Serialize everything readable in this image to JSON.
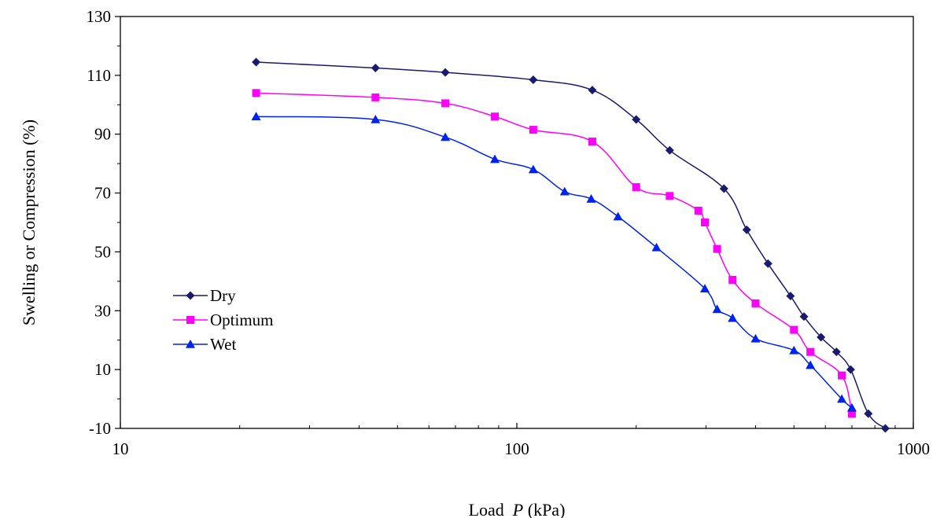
{
  "chart_data": {
    "type": "line",
    "title": "",
    "xlabel": "Load  P (kPa)",
    "xlabel_parts": [
      "Load  ",
      "P",
      " (kPa)"
    ],
    "ylabel": "Swelling or Compression (%)",
    "xscale": "log",
    "xlim": [
      10,
      1000
    ],
    "ylim": [
      -10,
      130
    ],
    "x_ticks": [
      10,
      100,
      1000
    ],
    "x_tick_labels": [
      "10",
      "100",
      "1000"
    ],
    "y_ticks": [
      -10,
      10,
      30,
      50,
      70,
      90,
      110,
      130
    ],
    "y_tick_labels": [
      "-10",
      "10",
      "30",
      "50",
      "70",
      "90",
      "110",
      "130"
    ],
    "grid": false,
    "legend_position": "left-middle",
    "series": [
      {
        "name": "Dry",
        "color": "#1a1a6e",
        "marker": "diamond",
        "x": [
          22,
          44,
          66,
          110,
          155,
          200,
          243,
          333,
          380,
          430,
          490,
          530,
          585,
          640,
          695,
          770,
          850
        ],
        "y": [
          114.5,
          112.5,
          111,
          108.5,
          105,
          95,
          84.5,
          71.5,
          57.5,
          46,
          35,
          28,
          21,
          16,
          10,
          -5,
          -10
        ]
      },
      {
        "name": "Optimum",
        "color": "#ff00ff",
        "marker": "square",
        "x": [
          22,
          44,
          66,
          88,
          110,
          155,
          200,
          243,
          287,
          298,
          320,
          350,
          400,
          500,
          550,
          660,
          700
        ],
        "y": [
          104,
          102.5,
          100.5,
          96,
          91.5,
          87.5,
          72,
          69,
          64,
          60,
          51,
          40.5,
          32.5,
          23.5,
          16,
          8,
          -5
        ]
      },
      {
        "name": "Wet",
        "color": "#0022ee",
        "marker": "triangle",
        "x": [
          22,
          44,
          66,
          88,
          110,
          132,
          154,
          180,
          225,
          298,
          320,
          350,
          400,
          500,
          550,
          660,
          700
        ],
        "y": [
          96,
          95,
          89,
          81.5,
          78,
          70.5,
          68,
          62,
          51.5,
          37.5,
          30.5,
          27.5,
          20.5,
          16.5,
          11.5,
          0,
          -3
        ]
      }
    ]
  }
}
